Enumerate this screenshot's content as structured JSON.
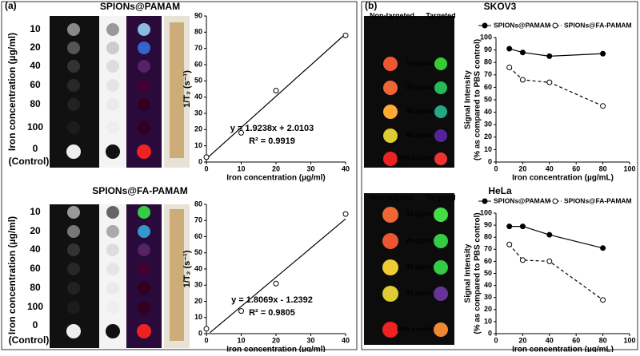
{
  "panel_a": {
    "label": "(a)",
    "ylabel": "Iron concentration (µg/ml)",
    "rows": [
      "10",
      "20",
      "40",
      "60",
      "80",
      "100",
      "0"
    ],
    "control": "(Control)"
  },
  "panel_b": {
    "label": "(b)",
    "col_headers": [
      "Non-targeted",
      "Targeted"
    ],
    "rows": [
      "10 µg/mL",
      "20 µg/mL",
      "40 µg/mL",
      "80 µg/mL",
      "PBS control"
    ]
  },
  "chart_data": [
    {
      "type": "scatter",
      "title": "SPIONs@PAMAM",
      "xlabel": "Iron concentration (µg/ml)",
      "ylabel": "1/T₂ (s⁻¹)",
      "x": [
        0,
        10,
        20,
        40
      ],
      "values": [
        3,
        18,
        44,
        78
      ],
      "fit": {
        "x": [
          0,
          40
        ],
        "values": [
          2,
          79
        ]
      },
      "annotations": [
        "y = 1.9238x + 2.0103",
        "R² = 0.9919"
      ],
      "xlim": [
        0,
        40
      ],
      "xticks": [
        0,
        10,
        20,
        30,
        40
      ],
      "ylim": [
        0,
        90
      ],
      "yticks": [
        0,
        10,
        20,
        30,
        40,
        50,
        60,
        70,
        80,
        90
      ]
    },
    {
      "type": "scatter",
      "title": "SPIONs@FA-PAMAM",
      "xlabel": "Iron concentration (µg/ml)",
      "ylabel": "1/T₂ (s⁻¹)",
      "x": [
        0,
        10,
        20,
        40
      ],
      "values": [
        3,
        14,
        31,
        74
      ],
      "fit": {
        "x": [
          1,
          40
        ],
        "values": [
          0.6,
          71
        ]
      },
      "annotations": [
        "y = 1.8069x - 1.2392",
        "R² = 0.9805"
      ],
      "xlim": [
        0,
        40
      ],
      "xticks": [
        0,
        10,
        20,
        30,
        40
      ],
      "ylim": [
        0,
        80
      ],
      "yticks": [
        0,
        10,
        20,
        30,
        40,
        50,
        60,
        70,
        80
      ]
    },
    {
      "type": "line",
      "title": "SKOV3",
      "xlabel": "Iron concentration (µg/mL)",
      "ylabel": [
        "Signal Intensity",
        "(% as compared to PBS control)"
      ],
      "x": [
        10,
        20,
        40,
        80
      ],
      "series": [
        {
          "name": "SPIONs@PAMAM",
          "color": "#000000",
          "marker": "filled",
          "dashed": false,
          "values": [
            91,
            88,
            85,
            87
          ]
        },
        {
          "name": "SPIONs@FA-PAMAM",
          "color": "#000000",
          "marker": "open",
          "dashed": true,
          "values": [
            76,
            66,
            64,
            45
          ]
        }
      ],
      "xlim": [
        0,
        100
      ],
      "xticks": [
        0,
        20,
        40,
        60,
        80,
        100
      ],
      "ylim": [
        0,
        100
      ],
      "yticks": [
        0,
        10,
        20,
        30,
        40,
        50,
        60,
        70,
        80,
        90,
        100
      ]
    },
    {
      "type": "line",
      "title": "HeLa",
      "xlabel": "Iron concentration (µg/mL)",
      "ylabel": [
        "Signal Intensity",
        "(% as compared to PBS control)"
      ],
      "x": [
        10,
        20,
        40,
        80
      ],
      "series": [
        {
          "name": "SPIONs@PAMAM",
          "color": "#000000",
          "marker": "filled",
          "dashed": false,
          "values": [
            89,
            89,
            82,
            71
          ]
        },
        {
          "name": "SPIONs@FA-PAMAM",
          "color": "#000000",
          "marker": "open",
          "dashed": true,
          "values": [
            74,
            61,
            60,
            28
          ]
        }
      ],
      "xlim": [
        0,
        100
      ],
      "xticks": [
        0,
        20,
        40,
        60,
        80,
        100
      ],
      "ylim": [
        0,
        100
      ],
      "yticks": [
        0,
        10,
        20,
        30,
        40,
        50,
        60,
        70,
        80,
        90,
        100
      ]
    }
  ]
}
